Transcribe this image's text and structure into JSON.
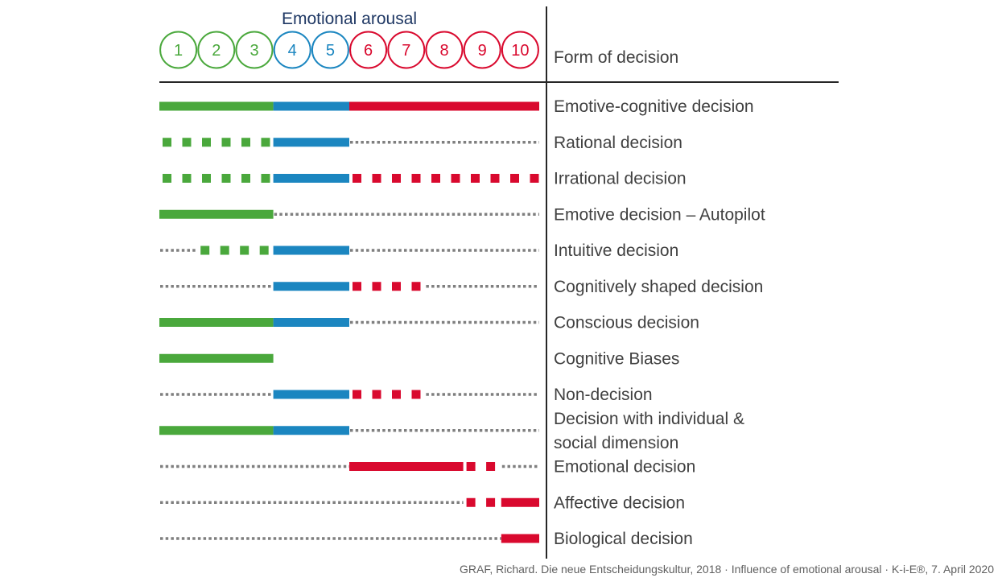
{
  "title": "Emotional arousal",
  "column_header": "Form of decision",
  "levels": [
    {
      "label": "1",
      "color": "green"
    },
    {
      "label": "2",
      "color": "green"
    },
    {
      "label": "3",
      "color": "green"
    },
    {
      "label": "4",
      "color": "blue"
    },
    {
      "label": "5",
      "color": "blue"
    },
    {
      "label": "6",
      "color": "red"
    },
    {
      "label": "7",
      "color": "red"
    },
    {
      "label": "8",
      "color": "red"
    },
    {
      "label": "9",
      "color": "red"
    },
    {
      "label": "10",
      "color": "red"
    }
  ],
  "colors": {
    "green": "#4aa83c",
    "blue": "#1b86c0",
    "red": "#d9092e",
    "gray": "#7f7f7f",
    "rule": "#262626"
  },
  "rows": [
    {
      "label": "Emotive-cognitive decision",
      "segments": [
        {
          "from": 0,
          "to": 3,
          "color": "green",
          "style": "solid"
        },
        {
          "from": 3,
          "to": 5,
          "color": "blue",
          "style": "solid"
        },
        {
          "from": 5,
          "to": 10,
          "color": "red",
          "style": "solid"
        }
      ]
    },
    {
      "label": "Rational decision",
      "segments": [
        {
          "from": 0,
          "to": 3,
          "color": "green",
          "style": "dashed"
        },
        {
          "from": 3,
          "to": 5,
          "color": "blue",
          "style": "solid"
        },
        {
          "from": 5,
          "to": 10,
          "color": "gray",
          "style": "dotted"
        }
      ]
    },
    {
      "label": "Irrational decision",
      "segments": [
        {
          "from": 0,
          "to": 3,
          "color": "green",
          "style": "dashed"
        },
        {
          "from": 3,
          "to": 5,
          "color": "blue",
          "style": "solid"
        },
        {
          "from": 5,
          "to": 10,
          "color": "red",
          "style": "dashed"
        }
      ]
    },
    {
      "label": "Emotive decision – Autopilot",
      "segments": [
        {
          "from": 0,
          "to": 3,
          "color": "green",
          "style": "solid"
        },
        {
          "from": 3,
          "to": 10,
          "color": "gray",
          "style": "dotted"
        }
      ]
    },
    {
      "label": "Intuitive decision",
      "segments": [
        {
          "from": 0,
          "to": 1,
          "color": "gray",
          "style": "dotted"
        },
        {
          "from": 1,
          "to": 3,
          "color": "green",
          "style": "dashed"
        },
        {
          "from": 3,
          "to": 5,
          "color": "blue",
          "style": "solid"
        },
        {
          "from": 5,
          "to": 10,
          "color": "gray",
          "style": "dotted"
        }
      ]
    },
    {
      "label": "Cognitively shaped decision",
      "segments": [
        {
          "from": 0,
          "to": 3,
          "color": "gray",
          "style": "dotted"
        },
        {
          "from": 3,
          "to": 5,
          "color": "blue",
          "style": "solid"
        },
        {
          "from": 5,
          "to": 7,
          "color": "red",
          "style": "dashed"
        },
        {
          "from": 7,
          "to": 10,
          "color": "gray",
          "style": "dotted"
        }
      ]
    },
    {
      "label": "Conscious decision",
      "segments": [
        {
          "from": 0,
          "to": 3,
          "color": "green",
          "style": "solid"
        },
        {
          "from": 3,
          "to": 5,
          "color": "blue",
          "style": "solid"
        },
        {
          "from": 5,
          "to": 10,
          "color": "gray",
          "style": "dotted"
        }
      ]
    },
    {
      "label": "Cognitive Biases",
      "segments": [
        {
          "from": 0,
          "to": 3,
          "color": "green",
          "style": "solid"
        }
      ]
    },
    {
      "label": "Non-decision",
      "segments": [
        {
          "from": 0,
          "to": 3,
          "color": "gray",
          "style": "dotted"
        },
        {
          "from": 3,
          "to": 5,
          "color": "blue",
          "style": "solid"
        },
        {
          "from": 5,
          "to": 7,
          "color": "red",
          "style": "dashed"
        },
        {
          "from": 7,
          "to": 10,
          "color": "gray",
          "style": "dotted"
        }
      ]
    },
    {
      "label_lines": [
        "Decision with individual &",
        "social dimension"
      ],
      "segments": [
        {
          "from": 0,
          "to": 3,
          "color": "green",
          "style": "solid"
        },
        {
          "from": 3,
          "to": 5,
          "color": "blue",
          "style": "solid"
        },
        {
          "from": 5,
          "to": 10,
          "color": "gray",
          "style": "dotted"
        }
      ]
    },
    {
      "label": "Emotional decision",
      "segments": [
        {
          "from": 0,
          "to": 5,
          "color": "gray",
          "style": "dotted"
        },
        {
          "from": 5,
          "to": 8,
          "color": "red",
          "style": "solid"
        },
        {
          "from": 8,
          "to": 9,
          "color": "red",
          "style": "dashed"
        },
        {
          "from": 9,
          "to": 10,
          "color": "gray",
          "style": "dotted"
        }
      ]
    },
    {
      "label": "Affective decision",
      "segments": [
        {
          "from": 0,
          "to": 8,
          "color": "gray",
          "style": "dotted"
        },
        {
          "from": 8,
          "to": 9,
          "color": "red",
          "style": "dashed"
        },
        {
          "from": 9,
          "to": 10,
          "color": "red",
          "style": "solid"
        }
      ]
    },
    {
      "label": "Biological decision",
      "segments": [
        {
          "from": 0,
          "to": 9,
          "color": "gray",
          "style": "dotted"
        },
        {
          "from": 9,
          "to": 10,
          "color": "red",
          "style": "solid"
        }
      ]
    }
  ],
  "source": "GRAF, Richard. Die neue Entscheidungskultur, 2018 · Influence of emotional arousal ·  K-i-E®, 7. April 2020"
}
